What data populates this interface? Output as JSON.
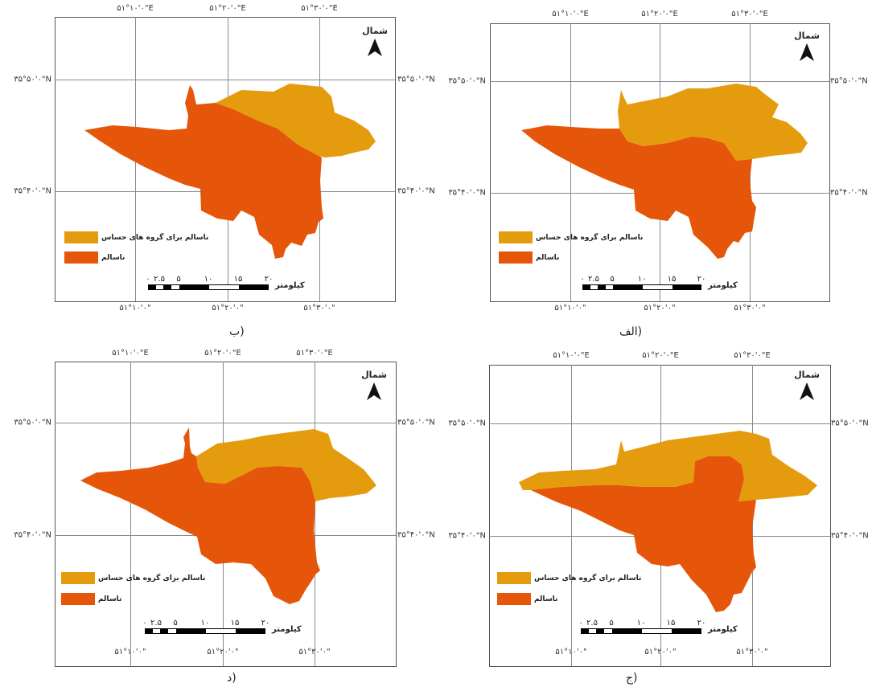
{
  "colors": {
    "sensitive": "#E59B0E",
    "unhealthy": "#E5560A",
    "frame": "#555555",
    "gridline": "#8a8a8a"
  },
  "common": {
    "north_label": "شمال",
    "legend_sensitive": "ناسالم برای گروه های حساس",
    "legend_unhealthy": "ناسالم",
    "scale_unit": "کیلومتر",
    "scale_numbers": [
      "۰",
      "۲.۵",
      "۵",
      "۱۰",
      "۱۵",
      "۲۰"
    ],
    "lat_upper": "۳۵°۵۰'۰\"N",
    "lat_lower": "۳۵°۴۰'۰\"N",
    "icons": {
      "north_arrow": "north-arrow-icon"
    }
  },
  "panels": [
    {
      "id": "alef",
      "caption": "الف)",
      "top_ticks": [
        "۵۱°۱۰'۰\"E",
        "۵۱°۲۰'۰\"E",
        "۵۱°۳۰'۰\"E"
      ],
      "bottom_ticks": [
        "۵۱°۱۰'۰\"",
        "۵۱°۲۰'۰\"",
        "۵۱°۳۰'۰\""
      ]
    },
    {
      "id": "be",
      "caption": "ب)",
      "top_ticks": [
        "۵۱°۱۰'۰\"E",
        "۵۱°۲۰'۰\"E",
        "۵۱°۳۰'۰\"E"
      ],
      "bottom_ticks": [
        "۵۱°۱۰'۰\"",
        "۵۱°۲۰'۰\"",
        "۵۱°۳۰'۰\""
      ]
    },
    {
      "id": "je",
      "caption": "ج)",
      "top_ticks": [
        "۵۱°۱۰'۰\"E",
        "۵۱°۲۰'۰\"E",
        "۵۱°۳۰'۰\"E"
      ],
      "bottom_ticks": [
        "۵۱°۱۰'۰\"",
        "۵۱°۲۰'۰\"",
        "۵۱°۳۰'۰\""
      ]
    },
    {
      "id": "dal",
      "caption": "د)",
      "top_ticks": [
        "۵۱°۱۰'۰\"E",
        "۵۱°۲۰'۰\"E",
        "۵۱°۳۰'۰\"E"
      ],
      "bottom_ticks": [
        "۵۱°۱۰'۰\"",
        "۵۱°۲۰'۰\"",
        "۵۱°۳۰'۰\""
      ]
    }
  ]
}
